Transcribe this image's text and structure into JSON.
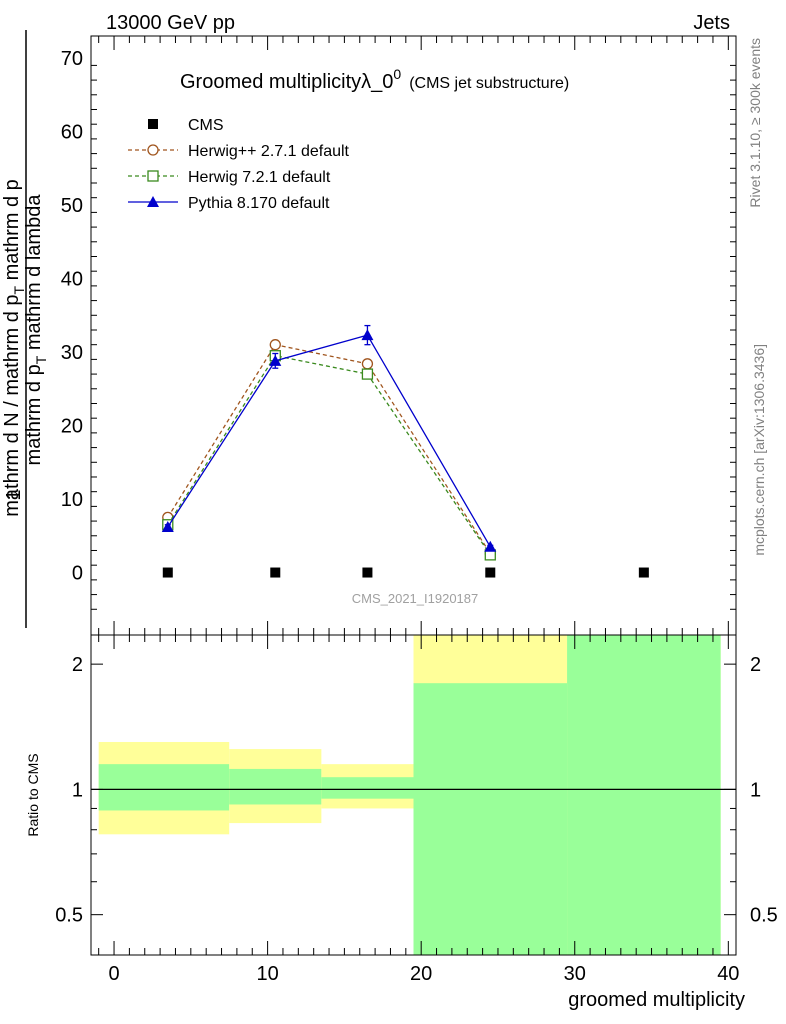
{
  "header": {
    "left": "13000 GeV pp",
    "right": "Jets"
  },
  "side": {
    "top": "Rivet 3.1.10, ≥ 300k events",
    "bottom": "mcplots.cern.ch [arXiv:1306.3436]"
  },
  "chart_data": [
    {
      "type": "line",
      "title": "Groomed multiplicityλ_0",
      "title_superscript": "0",
      "subtitle": "(CMS jet substructure)",
      "analysis_label": "CMS_2021_I1920187",
      "ylabel_numerator": "1",
      "ylabel_den_line1": "mathrm dN",
      "ylabel_den_line2": "mathrm d p",
      "ylabel_den_line2_sub": "T",
      "ylabel_den_line2_rest": " mathrm d lambda",
      "ylabel_denominator": "mathrm d N / mathrm d p",
      "ylabel_denominator_sub": "T",
      "ylabel_denominator_rest": " mathrm d p",
      "ylim": [
        -8.5,
        73
      ],
      "yticks": [
        0,
        10,
        20,
        30,
        40,
        50,
        60,
        70
      ],
      "series": [
        {
          "name": "CMS",
          "color": "#000000",
          "marker": "filled-square",
          "line": "none",
          "x": [
            3.5,
            10.5,
            16.5,
            24.5,
            34.5
          ],
          "y": [
            0,
            0,
            0,
            0,
            0
          ]
        },
        {
          "name": "Herwig++ 2.7.1 default",
          "color": "#a0551e",
          "marker": "open-circle",
          "line": "dashed",
          "x": [
            3.5,
            10.5,
            16.5,
            24.5
          ],
          "y": [
            7.5,
            31.0,
            28.4,
            2.6
          ]
        },
        {
          "name": "Herwig 7.2.1 default",
          "color": "#3a8a1e",
          "marker": "open-square",
          "line": "dashed",
          "x": [
            3.5,
            10.5,
            16.5,
            24.5
          ],
          "y": [
            6.5,
            29.5,
            27.0,
            2.4
          ]
        },
        {
          "name": "Pythia 8.170 default",
          "color": "#0000cc",
          "marker": "filled-triangle",
          "line": "solid",
          "x": [
            3.5,
            10.5,
            16.5,
            24.5
          ],
          "y": [
            6.2,
            28.8,
            32.3,
            3.5
          ],
          "yerr": [
            0.3,
            1.0,
            1.3,
            0.2
          ]
        }
      ]
    },
    {
      "type": "area",
      "ylabel": "Ratio to CMS",
      "ylim": [
        0.4,
        2.35
      ],
      "log_scale": true,
      "yticks": [
        0.5,
        1,
        2
      ],
      "reference_line": 1,
      "bands": [
        {
          "x0": -1,
          "x1": 7.5,
          "yellow": [
            0.78,
            1.3
          ],
          "green": [
            0.89,
            1.15
          ]
        },
        {
          "x0": 7.5,
          "x1": 13.5,
          "yellow": [
            0.83,
            1.25
          ],
          "green": [
            0.92,
            1.12
          ]
        },
        {
          "x0": 13.5,
          "x1": 19.5,
          "yellow": [
            0.9,
            1.15
          ],
          "green": [
            0.95,
            1.07
          ]
        },
        {
          "x0": 19.5,
          "x1": 29.5,
          "yellow": [
            0.4,
            2.35
          ],
          "green": [
            0.4,
            1.8
          ]
        },
        {
          "x0": 29.5,
          "x1": 39.5,
          "yellow": [
            0.4,
            2.35
          ],
          "green": [
            0.4,
            2.35
          ]
        }
      ],
      "band_colors": {
        "yellow": "#ffff99",
        "green": "#99ff99"
      }
    }
  ],
  "xaxis": {
    "label": "groomed multiplicity",
    "xlim": [
      -1.5,
      40.5
    ],
    "ticks": [
      0,
      10,
      20,
      30,
      40
    ]
  }
}
